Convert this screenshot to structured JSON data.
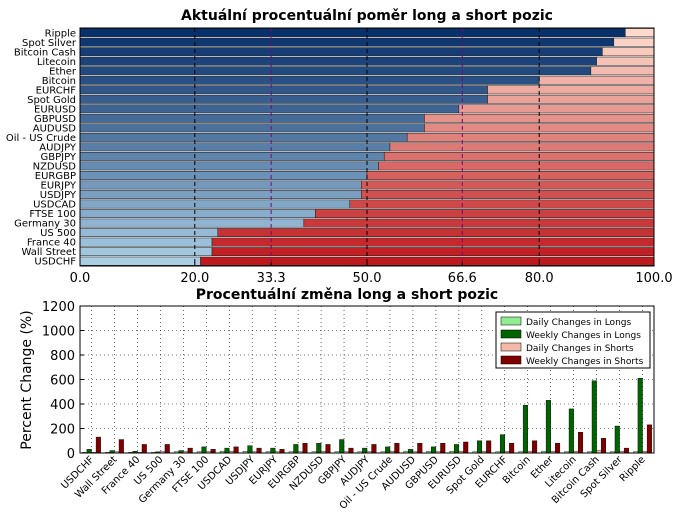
{
  "chart_data": [
    {
      "type": "bar",
      "orientation": "horizontal",
      "stacked": true,
      "title": "Aktuální procentuální poměr long a short pozic",
      "categories": [
        "Ripple",
        "Spot Silver",
        "Bitcoin Cash",
        "Litecoin",
        "Ether",
        "Bitcoin",
        "EURCHF",
        "Spot Gold",
        "EURUSD",
        "GBPUSD",
        "AUDUSD",
        "Oil - US Crude",
        "AUDJPY",
        "GBPJPY",
        "NZDUSD",
        "EURGBP",
        "EURJPY",
        "USDJPY",
        "USDCAD",
        "FTSE 100",
        "Germany 30",
        "US 500",
        "France 40",
        "Wall Street",
        "USDCHF"
      ],
      "long_values": [
        95,
        93,
        91,
        90,
        89,
        80,
        71,
        71,
        66,
        60,
        60,
        57,
        54,
        53,
        52,
        50,
        49,
        49,
        47,
        41,
        39,
        24,
        23,
        23,
        21
      ],
      "xlim": [
        0,
        100
      ],
      "xticks": [
        "0.0",
        "20.0",
        "33.3",
        "50.0",
        "66.6",
        "80.0",
        "100.0"
      ],
      "highlight_ticks": [
        "33.3",
        "66.6"
      ],
      "grid": true
    },
    {
      "type": "bar",
      "title": "Procentuální změna long a short pozic",
      "ylabel": "Percent Change (%)",
      "ylim": [
        0,
        1200
      ],
      "yticks": [
        "0",
        "200",
        "400",
        "600",
        "800",
        "1000",
        "1200"
      ],
      "categories": [
        "USDCHF",
        "Wall Street",
        "France 40",
        "US 500",
        "Germany 30",
        "FTSE 100",
        "USDCAD",
        "USDJPY",
        "EURJPY",
        "EURGBP",
        "NZDUSD",
        "GBPJPY",
        "AUDJPY",
        "Oil - US Crude",
        "AUDUSD",
        "GBPUSD",
        "EURUSD",
        "Spot Gold",
        "EURCHF",
        "Bitcoin",
        "Ether",
        "Litecoin",
        "Bitcoin Cash",
        "Spot Silver",
        "Ripple"
      ],
      "series": [
        {
          "name": "Daily Changes in Longs",
          "color": "#90ee90",
          "values": [
            5,
            5,
            5,
            5,
            10,
            10,
            15,
            15,
            10,
            10,
            10,
            10,
            10,
            10,
            15,
            15,
            15,
            10,
            10,
            10,
            15,
            10,
            10,
            10,
            10
          ]
        },
        {
          "name": "Weekly Changes in Longs",
          "color": "#006400",
          "values": [
            30,
            20,
            15,
            10,
            20,
            50,
            40,
            60,
            40,
            70,
            80,
            110,
            40,
            50,
            30,
            50,
            70,
            100,
            150,
            390,
            430,
            360,
            590,
            220,
            610
          ]
        },
        {
          "name": "Daily Changes in Shorts",
          "color": "#f4b8a8",
          "values": [
            5,
            10,
            5,
            10,
            10,
            10,
            15,
            10,
            10,
            10,
            15,
            10,
            10,
            15,
            10,
            10,
            15,
            15,
            15,
            15,
            15,
            15,
            20,
            15,
            15
          ]
        },
        {
          "name": "Weekly Changes in Shorts",
          "color": "#800000",
          "values": [
            130,
            110,
            70,
            70,
            40,
            30,
            50,
            40,
            30,
            80,
            70,
            40,
            70,
            80,
            80,
            80,
            90,
            100,
            80,
            100,
            80,
            170,
            120,
            40,
            230
          ]
        }
      ],
      "legend": "top-right",
      "grid": true
    }
  ]
}
